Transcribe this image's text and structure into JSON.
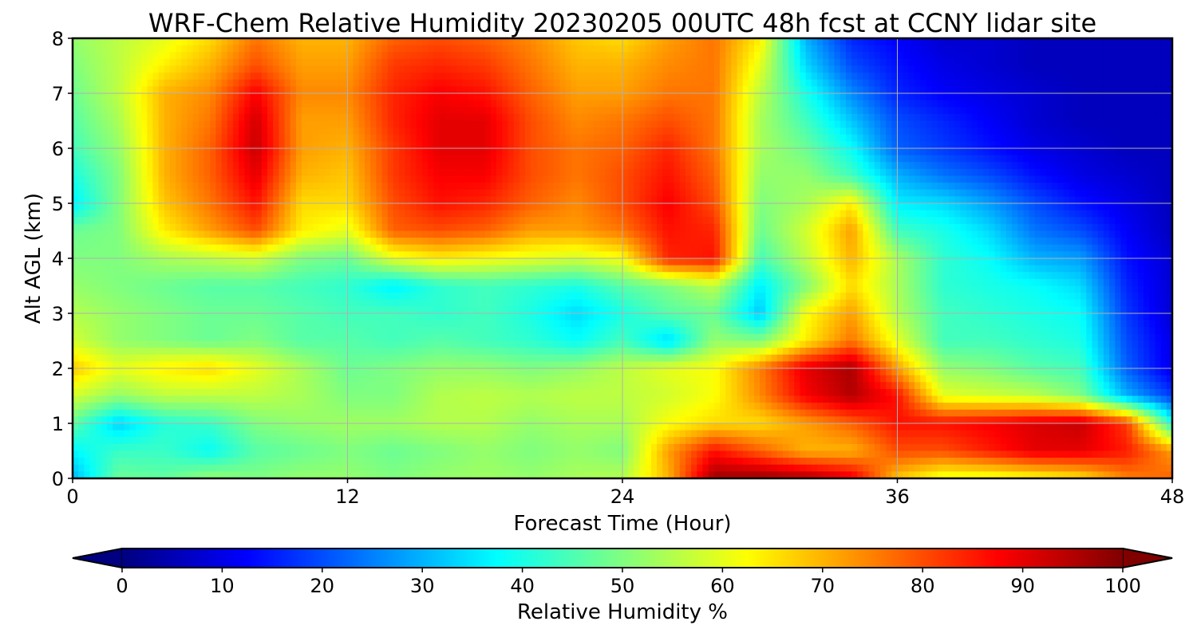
{
  "chart_data": {
    "type": "heatmap",
    "title": "WRF-Chem Relative Humidity 20230205 00UTC 48h fcst at CCNY lidar site",
    "xlabel": "Forecast Time (Hour)",
    "ylabel": "Alt AGL (km)",
    "xlim": [
      0,
      48
    ],
    "ylim": [
      0,
      8
    ],
    "xticks": [
      0,
      12,
      24,
      36,
      48
    ],
    "yticks": [
      0,
      1,
      2,
      3,
      4,
      5,
      6,
      7,
      8
    ],
    "grid": true,
    "colormap": "jet",
    "colorbar": {
      "label": "Relative Humidity %",
      "ticks": [
        0,
        10,
        20,
        30,
        40,
        50,
        60,
        70,
        80,
        90,
        100
      ],
      "range": [
        0,
        100
      ],
      "extend": "both",
      "orientation": "horizontal",
      "placement": "bottom"
    },
    "x": [
      0,
      2,
      4,
      6,
      8,
      10,
      12,
      14,
      16,
      18,
      20,
      22,
      24,
      26,
      28,
      30,
      32,
      34,
      36,
      38,
      40,
      42,
      44,
      46,
      48
    ],
    "y": [
      0,
      0.5,
      1,
      1.5,
      2,
      2.5,
      3,
      3.5,
      4,
      4.5,
      5,
      5.5,
      6,
      6.5,
      7,
      7.5,
      8
    ],
    "values": [
      [
        30,
        48,
        47,
        52,
        50,
        52,
        52,
        50,
        52,
        53,
        52,
        54,
        55,
        70,
        97,
        98,
        96,
        90,
        68,
        60,
        60,
        62,
        65,
        75,
        78
      ],
      [
        37,
        43,
        43,
        38,
        46,
        48,
        50,
        48,
        50,
        52,
        50,
        52,
        50,
        72,
        86,
        78,
        70,
        70,
        80,
        80,
        85,
        90,
        90,
        85,
        72
      ],
      [
        47,
        33,
        41,
        43,
        50,
        52,
        53,
        53,
        55,
        55,
        52,
        54,
        54,
        62,
        66,
        66,
        72,
        78,
        86,
        86,
        88,
        91,
        93,
        82,
        40
      ],
      [
        58,
        52,
        56,
        56,
        56,
        54,
        50,
        50,
        55,
        56,
        55,
        56,
        56,
        58,
        62,
        74,
        88,
        95,
        86,
        60,
        58,
        56,
        50,
        30,
        18
      ],
      [
        68,
        60,
        64,
        66,
        60,
        54,
        48,
        50,
        52,
        52,
        50,
        52,
        56,
        60,
        62,
        75,
        90,
        96,
        72,
        52,
        50,
        46,
        44,
        22,
        10
      ],
      [
        58,
        52,
        50,
        48,
        50,
        46,
        46,
        44,
        46,
        44,
        42,
        38,
        44,
        34,
        52,
        50,
        64,
        76,
        60,
        44,
        44,
        42,
        40,
        20,
        10
      ],
      [
        55,
        52,
        50,
        48,
        48,
        46,
        44,
        44,
        42,
        44,
        40,
        34,
        40,
        46,
        48,
        32,
        62,
        72,
        55,
        44,
        42,
        40,
        38,
        18,
        8
      ],
      [
        52,
        50,
        48,
        46,
        46,
        44,
        42,
        36,
        42,
        44,
        42,
        40,
        46,
        50,
        56,
        36,
        50,
        66,
        54,
        42,
        40,
        38,
        34,
        16,
        8
      ],
      [
        50,
        50,
        54,
        56,
        58,
        50,
        48,
        60,
        64,
        62,
        60,
        58,
        62,
        84,
        86,
        44,
        56,
        70,
        54,
        42,
        38,
        30,
        28,
        14,
        8
      ],
      [
        48,
        50,
        64,
        72,
        80,
        64,
        60,
        78,
        80,
        78,
        72,
        72,
        76,
        86,
        84,
        48,
        58,
        72,
        44,
        40,
        34,
        24,
        20,
        12,
        6
      ],
      [
        36,
        50,
        68,
        76,
        86,
        66,
        66,
        80,
        86,
        84,
        78,
        74,
        80,
        88,
        80,
        50,
        54,
        64,
        36,
        34,
        28,
        20,
        14,
        10,
        6
      ],
      [
        40,
        50,
        70,
        78,
        90,
        70,
        68,
        82,
        88,
        88,
        80,
        76,
        80,
        86,
        78,
        52,
        52,
        44,
        30,
        24,
        20,
        14,
        10,
        8,
        6
      ],
      [
        44,
        52,
        70,
        78,
        93,
        72,
        70,
        82,
        90,
        90,
        80,
        76,
        78,
        84,
        76,
        54,
        48,
        38,
        22,
        18,
        14,
        10,
        8,
        6,
        6
      ],
      [
        46,
        54,
        70,
        76,
        92,
        72,
        72,
        84,
        90,
        90,
        80,
        74,
        76,
        80,
        76,
        54,
        44,
        32,
        20,
        16,
        12,
        8,
        6,
        6,
        6
      ],
      [
        48,
        56,
        70,
        74,
        88,
        74,
        74,
        84,
        88,
        86,
        78,
        72,
        72,
        76,
        76,
        56,
        40,
        26,
        16,
        12,
        10,
        8,
        6,
        6,
        6
      ],
      [
        50,
        56,
        64,
        70,
        80,
        72,
        72,
        82,
        84,
        82,
        76,
        70,
        70,
        74,
        76,
        60,
        34,
        20,
        14,
        10,
        8,
        6,
        6,
        6,
        6
      ],
      [
        52,
        56,
        60,
        66,
        76,
        70,
        70,
        78,
        80,
        78,
        74,
        68,
        66,
        72,
        76,
        64,
        30,
        16,
        12,
        8,
        8,
        6,
        6,
        6,
        6
      ]
    ]
  }
}
